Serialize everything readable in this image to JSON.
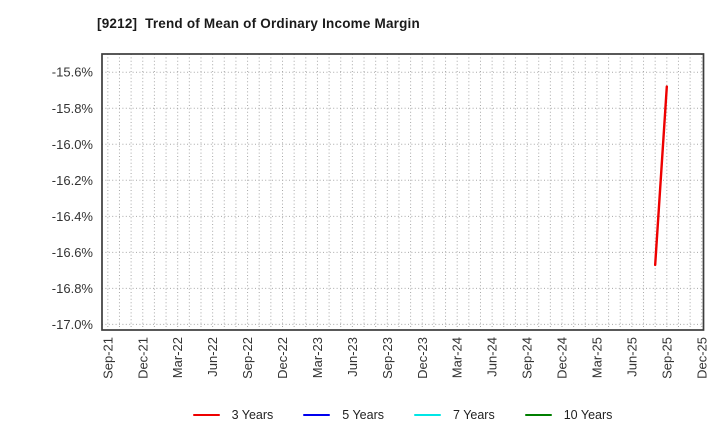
{
  "title": "[9212]  Trend of Mean of Ordinary Income Margin",
  "chart_data": {
    "type": "line",
    "title": "[9212]  Trend of Mean of Ordinary Income Margin",
    "xlabel": "",
    "ylabel": "",
    "x_tick_labels": [
      "Sep-21",
      "Dec-21",
      "Mar-22",
      "Jun-22",
      "Sep-22",
      "Dec-22",
      "Mar-23",
      "Jun-23",
      "Sep-23",
      "Dec-23",
      "Mar-24",
      "Jun-24",
      "Sep-24",
      "Dec-24",
      "Mar-25",
      "Jun-25",
      "Sep-25",
      "Dec-25"
    ],
    "x_tick_month_step": 3,
    "y_tick_labels": [
      "-15.6%",
      "-15.8%",
      "-16.0%",
      "-16.2%",
      "-16.4%",
      "-16.6%",
      "-16.8%",
      "-17.0%"
    ],
    "ylim": [
      -17.03,
      -15.5
    ],
    "grid": {
      "vertical": "monthly, dotted",
      "horizontal": "every 0.2%, dotted",
      "color": "#a8a8a8"
    },
    "legend_position": "bottom center",
    "series": [
      {
        "name": "3 Years",
        "color": "#ee0000",
        "points": [
          {
            "x": "Aug-25",
            "m": 47,
            "y": -16.67
          },
          {
            "x": "Sep-25",
            "m": 48,
            "y": -15.68
          }
        ]
      },
      {
        "name": "5 Years",
        "color": "#0000ee",
        "points": []
      },
      {
        "name": "7 Years",
        "color": "#00e6e6",
        "points": []
      },
      {
        "name": "10 Years",
        "color": "#007f00",
        "points": []
      }
    ]
  },
  "legend": {
    "items": [
      {
        "label": "3 Years",
        "color": "#ee0000"
      },
      {
        "label": "5 Years",
        "color": "#0000ee"
      },
      {
        "label": "7 Years",
        "color": "#00e6e6"
      },
      {
        "label": "10 Years",
        "color": "#007f00"
      }
    ]
  }
}
